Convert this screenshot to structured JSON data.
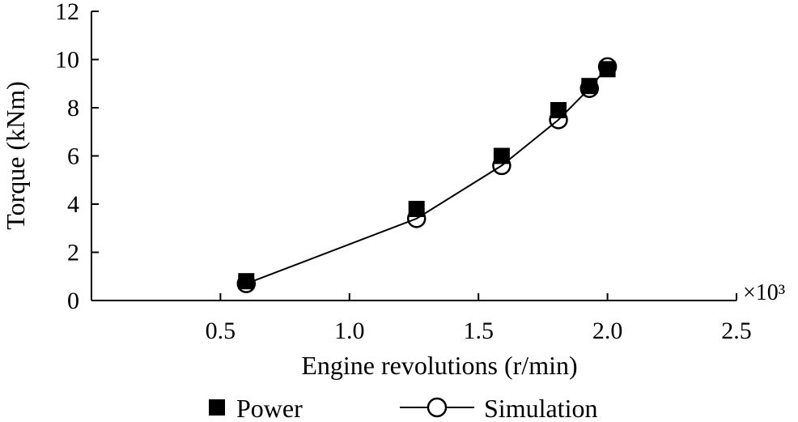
{
  "chart_data": {
    "type": "scatter",
    "title": "",
    "xlabel": "Engine revolutions (r/min)",
    "ylabel": "Torque (kNm)",
    "x_multiplier_label": "×10³",
    "xlim": [
      0,
      2.5
    ],
    "ylim": [
      0,
      12
    ],
    "x_ticks": [
      "0.5",
      "1.0",
      "1.5",
      "2.0",
      "2.5"
    ],
    "y_ticks": [
      "0",
      "2",
      "4",
      "6",
      "8",
      "10",
      "12"
    ],
    "grid": false,
    "legend_position": "bottom",
    "series": [
      {
        "name": "Power",
        "marker": "filled-square",
        "line": false,
        "color": "#000000",
        "points": [
          {
            "x": 0.6,
            "y": 0.8
          },
          {
            "x": 1.26,
            "y": 3.8
          },
          {
            "x": 1.59,
            "y": 6.0
          },
          {
            "x": 1.81,
            "y": 7.9
          },
          {
            "x": 1.93,
            "y": 8.9
          },
          {
            "x": 2.0,
            "y": 9.6
          }
        ]
      },
      {
        "name": "Simulation",
        "marker": "open-circle",
        "line": true,
        "color": "#000000",
        "points": [
          {
            "x": 0.6,
            "y": 0.7
          },
          {
            "x": 1.26,
            "y": 3.4
          },
          {
            "x": 1.59,
            "y": 5.6
          },
          {
            "x": 1.81,
            "y": 7.5
          },
          {
            "x": 1.93,
            "y": 8.8
          },
          {
            "x": 2.0,
            "y": 9.7
          }
        ]
      }
    ]
  }
}
